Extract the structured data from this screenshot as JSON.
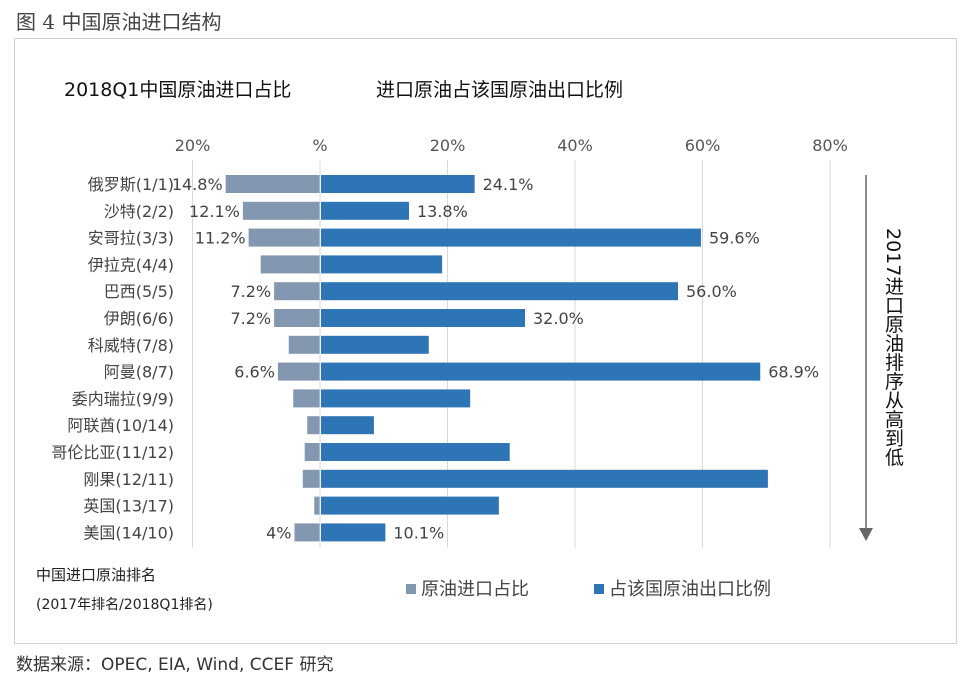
{
  "figure_title": "图 4  中国原油进口结构",
  "source": "数据来源：OPEC, EIA, Wind, CCEF 研究",
  "chart_data": {
    "type": "bar",
    "orientation": "horizontal",
    "diverging": true,
    "left_title": "2018Q1中国原油进口占比",
    "right_title": "进口原油占该国原油出口比例",
    "xlim": [
      -20,
      80
    ],
    "x_ticks": [
      -20,
      0,
      20,
      40,
      60,
      80
    ],
    "x_tick_labels": [
      "20%",
      "%",
      "20%",
      "40%",
      "60%",
      "80%"
    ],
    "grid": true,
    "categories": [
      "俄罗斯(1/1)",
      "沙特(2/2)",
      "安哥拉(3/3)",
      "伊拉克(4/4)",
      "巴西(5/5)",
      "伊朗(6/6)",
      "科威特(7/8)",
      "阿曼(8/7)",
      "委内瑞拉(9/9)",
      "阿联酋(10/14)",
      "哥伦比亚(11/12)",
      "刚果(12/11)",
      "英国(13/17)",
      "美国(14/10)"
    ],
    "series": [
      {
        "name": "原油进口占比",
        "color": "#8497b0",
        "values": [
          14.8,
          12.1,
          11.2,
          9.3,
          7.2,
          7.2,
          4.9,
          6.6,
          4.2,
          2.0,
          2.4,
          2.7,
          0.9,
          4.0
        ],
        "labels": [
          "14.8%",
          "12.1%",
          "11.2%",
          "",
          "7.2%",
          "7.2%",
          "",
          "6.6%",
          "",
          "",
          "",
          "",
          "",
          "4%"
        ]
      },
      {
        "name": "占该国原油出口比例",
        "color": "#2e75b6",
        "values": [
          24.1,
          13.8,
          59.6,
          19.0,
          56.0,
          32.0,
          16.9,
          68.9,
          23.4,
          8.3,
          29.6,
          70.1,
          27.9,
          10.1
        ],
        "labels": [
          "24.1%",
          "13.8%",
          "59.6%",
          "",
          "56.0%",
          "32.0%",
          "",
          "68.9%",
          "",
          "",
          "",
          "",
          "",
          "10.1%"
        ]
      }
    ],
    "legend": [
      "原油进口占比",
      "占该国原油出口比例"
    ],
    "legend_placement": "bottom",
    "category_note": [
      "中国进口原油排名",
      "(2017年排名/2018Q1排名)"
    ],
    "arrow_label": "2017进口原油排序从高到低"
  }
}
